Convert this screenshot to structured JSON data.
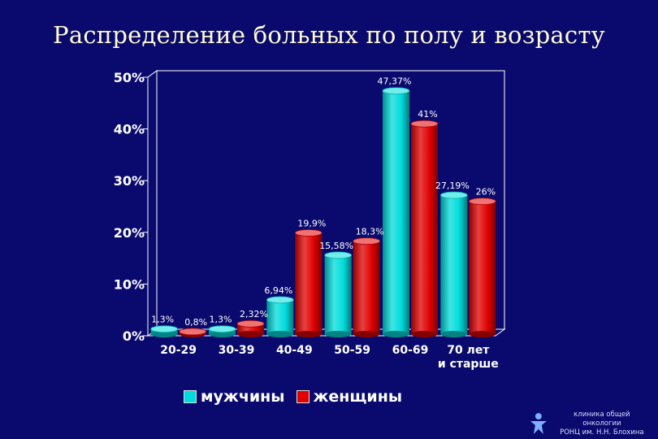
{
  "slide": {
    "title": "Распределение больных по полу и возрасту"
  },
  "chart_data": {
    "type": "bar",
    "title": "Распределение больных по полу и возрасту",
    "categories": [
      "20-29",
      "30-39",
      "40-49",
      "50-59",
      "60-69",
      "70 лет и старше"
    ],
    "series": [
      {
        "name": "мужчины",
        "color": "#00dcdc",
        "values": [
          1.3,
          1.3,
          6.94,
          15.58,
          47.37,
          27.19
        ],
        "labels": [
          "1,3%",
          "1,3%",
          "6,94%",
          "15,58%",
          "47,37%",
          "27,19%"
        ]
      },
      {
        "name": "женщины",
        "color": "#e00000",
        "values": [
          0.8,
          2.32,
          19.9,
          18.3,
          41,
          26
        ],
        "labels": [
          "0,8%",
          "2,32%",
          "19,9%",
          "18,3%",
          "41%",
          "26%"
        ]
      }
    ],
    "yticks": [
      "0%",
      "10%",
      "20%",
      "30%",
      "40%",
      "50%"
    ],
    "ylim": [
      0,
      50
    ],
    "xlabel": "",
    "ylabel": "",
    "grid": true,
    "legend": "bottom"
  },
  "footer": {
    "line1": "клиника общей онкологии",
    "line2": "РОНЦ им. Н.Н. Блохина",
    "logo_icon": "person-icon"
  }
}
